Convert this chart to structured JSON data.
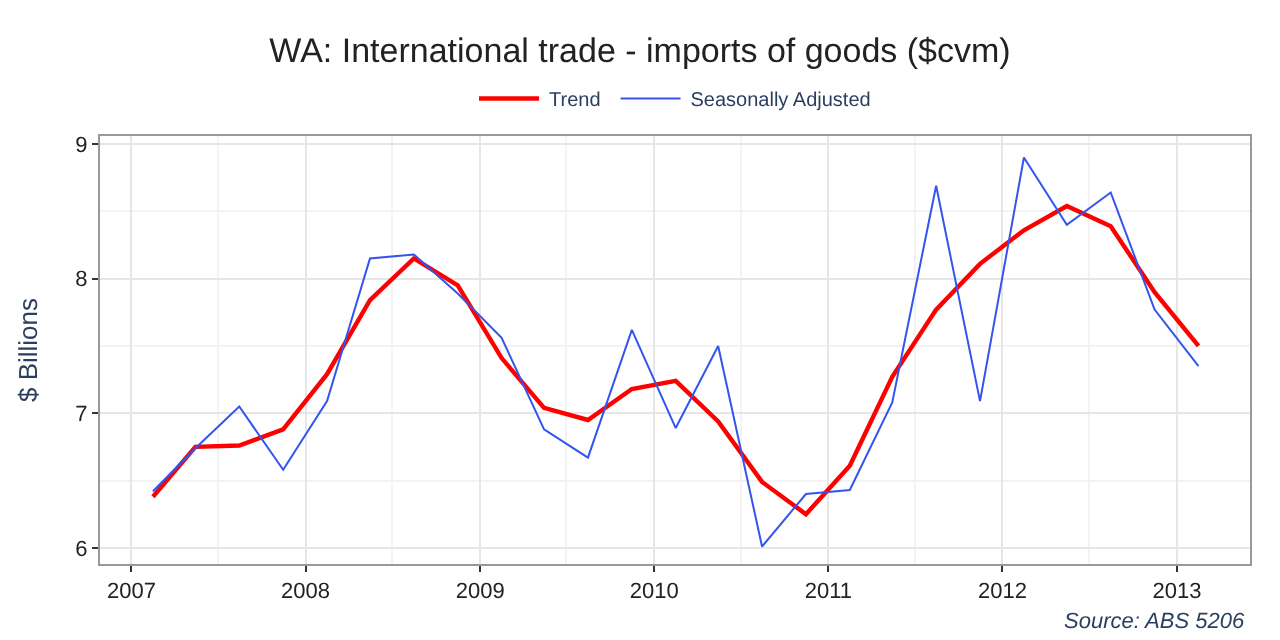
{
  "chart_data": {
    "type": "line",
    "title": "WA: International trade - imports of goods ($cvm)",
    "ylabel": "$ Billions",
    "x": [
      "2007-02-15",
      "2007-05-15",
      "2007-08-15",
      "2007-11-15",
      "2008-02-15",
      "2008-05-15",
      "2008-08-15",
      "2008-11-15",
      "2009-02-15",
      "2009-05-15",
      "2009-08-15",
      "2009-11-15",
      "2010-02-15",
      "2010-05-15",
      "2010-08-15",
      "2010-11-15",
      "2011-02-15",
      "2011-05-15",
      "2011-08-15",
      "2011-11-15",
      "2012-02-15",
      "2012-05-15",
      "2012-08-15",
      "2012-11-15",
      "2013-02-15"
    ],
    "series": [
      {
        "name": "Trend",
        "color": "#ff0000",
        "values": [
          6.38,
          6.75,
          6.76,
          6.88,
          7.29,
          7.84,
          8.15,
          7.95,
          7.41,
          7.04,
          6.95,
          7.18,
          7.24,
          6.94,
          6.49,
          6.25,
          6.61,
          7.27,
          7.77,
          8.11,
          8.36,
          8.54,
          8.39,
          7.9,
          7.5
        ]
      },
      {
        "name": "Seasonally Adjusted",
        "color": "#3355ee",
        "values": [
          6.42,
          6.74,
          7.05,
          6.58,
          7.09,
          8.15,
          8.18,
          7.89,
          7.56,
          6.88,
          6.67,
          7.62,
          6.89,
          7.5,
          6.01,
          6.4,
          6.43,
          7.08,
          8.69,
          7.09,
          8.9,
          8.4,
          8.64,
          7.77,
          7.35
        ]
      }
    ],
    "xlim": [
      "2006-10-27",
      "2013-06-03"
    ],
    "xticks": [
      {
        "value": "2007-01-01",
        "label": "2007"
      },
      {
        "value": "2008-01-01",
        "label": "2008"
      },
      {
        "value": "2009-01-01",
        "label": "2009"
      },
      {
        "value": "2010-01-01",
        "label": "2010"
      },
      {
        "value": "2011-01-01",
        "label": "2011"
      },
      {
        "value": "2012-01-01",
        "label": "2012"
      },
      {
        "value": "2013-01-01",
        "label": "2013"
      }
    ],
    "ylim": [
      5.88,
      9.06
    ],
    "yticks": [
      6,
      7,
      8,
      9
    ],
    "grid": true,
    "legend": "top",
    "marker": "none",
    "line_style": "solid",
    "annotations": [
      "Source: ABS 5206"
    ]
  }
}
